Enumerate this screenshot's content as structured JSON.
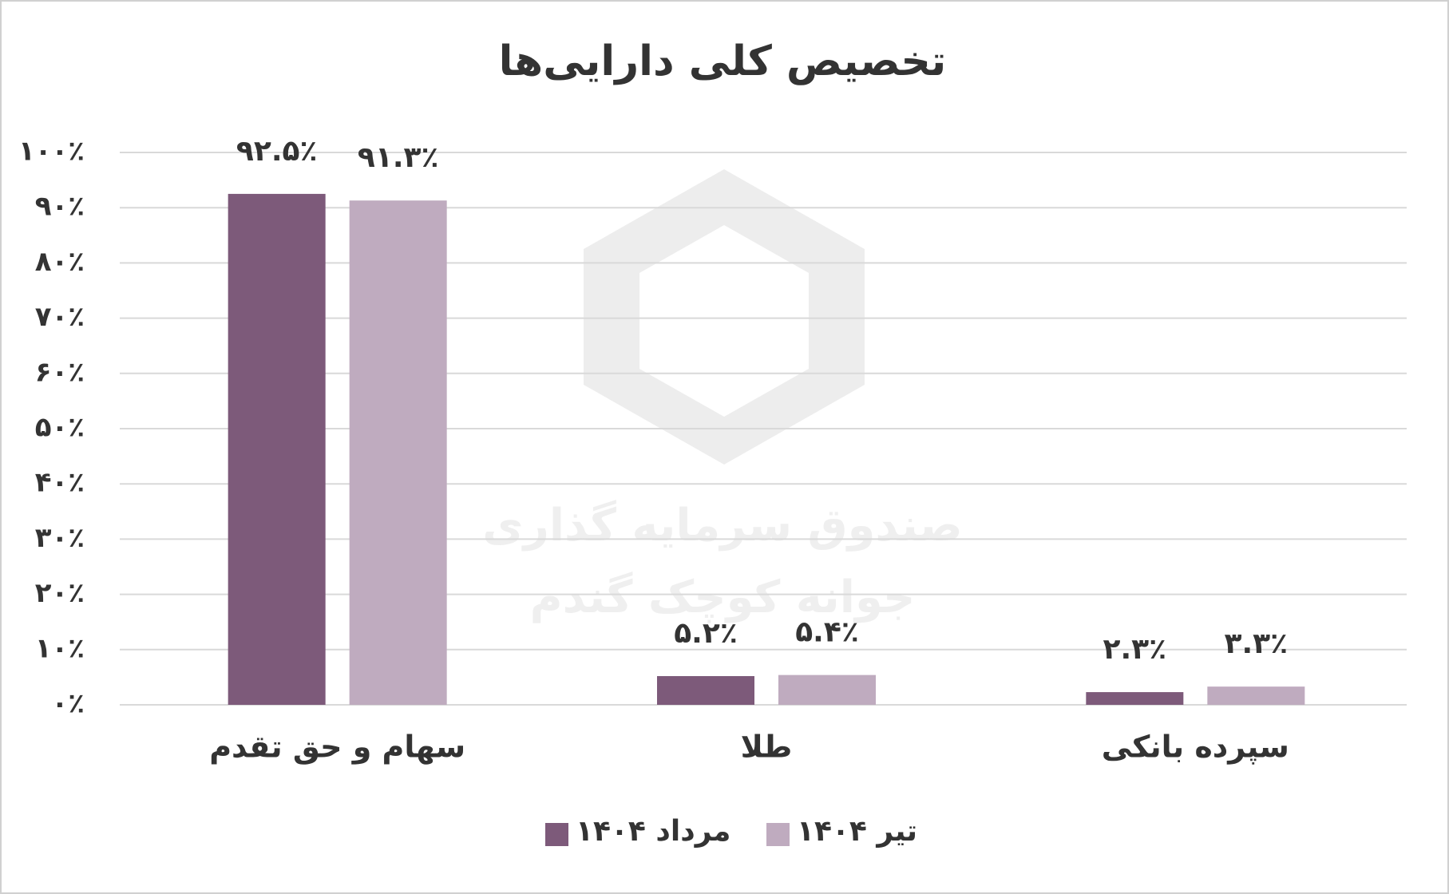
{
  "chart_data": {
    "type": "bar",
    "title": "تخصیص کلی دارایی‌ها",
    "watermark": [
      "صندوق سرمایه گذاری",
      "جوانه کوچک گندم"
    ],
    "categories": [
      "سهام و حق تقدم",
      "طلا",
      "سپرده بانکی"
    ],
    "series": [
      {
        "name": "مرداد ۱۴۰۴",
        "color": "#7d5a7a",
        "values": [
          92.5,
          5.2,
          2.3
        ],
        "value_labels": [
          "۹۲.۵٪",
          "۵.۲٪",
          "۲.۳٪"
        ]
      },
      {
        "name": "تیر ۱۴۰۴",
        "color": "#bfabbf",
        "values": [
          91.3,
          5.4,
          3.3
        ],
        "value_labels": [
          "۹۱.۳٪",
          "۵.۴٪",
          "۳.۳٪"
        ]
      }
    ],
    "ylim": [
      0,
      100
    ],
    "yticks": [
      {
        "value": 0,
        "label": "۰٪"
      },
      {
        "value": 10,
        "label": "۱۰٪"
      },
      {
        "value": 20,
        "label": "۲۰٪"
      },
      {
        "value": 30,
        "label": "۳۰٪"
      },
      {
        "value": 40,
        "label": "۴۰٪"
      },
      {
        "value": 50,
        "label": "۵۰٪"
      },
      {
        "value": 60,
        "label": "۶۰٪"
      },
      {
        "value": 70,
        "label": "۷۰٪"
      },
      {
        "value": 80,
        "label": "۸۰٪"
      },
      {
        "value": 90,
        "label": "۹۰٪"
      },
      {
        "value": 100,
        "label": "۱۰۰٪"
      }
    ],
    "grid": true
  }
}
